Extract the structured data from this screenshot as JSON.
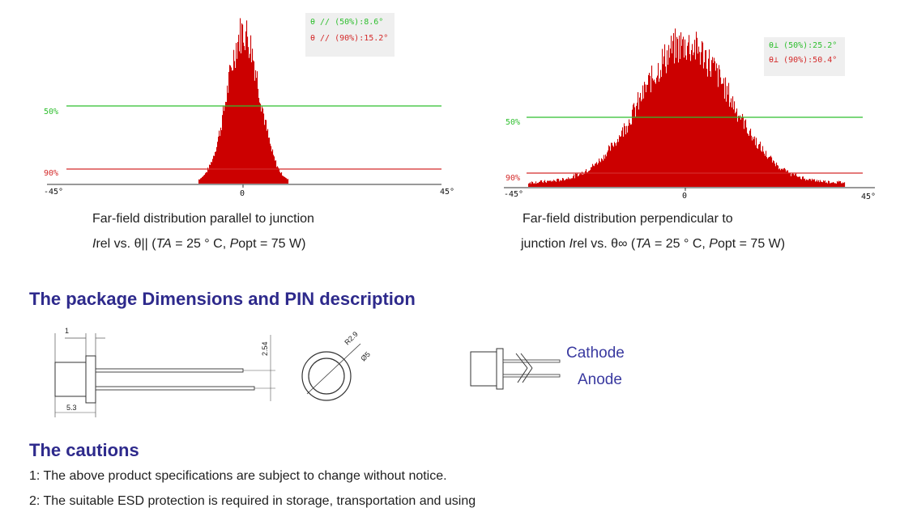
{
  "chart_data": [
    {
      "type": "histogram",
      "xlabel_ticks": [
        "-45°",
        "0",
        "45°"
      ],
      "xlim": [
        -45,
        45
      ],
      "reference_lines": [
        {
          "label": "50%",
          "level": 0.5,
          "color": "#2fbf2f"
        },
        {
          "label": "90%",
          "level": 0.1,
          "color": "#d42a2a"
        }
      ],
      "legend": [
        "θ // (50%):8.6°",
        "θ // (90%):15.2°"
      ],
      "fwhm_deg": 8.6,
      "width_90_deg": 15.2,
      "color": "#cc0000",
      "legend_colors": [
        "#2fbf2f",
        "#d42a2a"
      ]
    },
    {
      "type": "histogram",
      "xlabel_ticks": [
        "-45°",
        "0",
        "45°"
      ],
      "xlim": [
        -45,
        45
      ],
      "reference_lines": [
        {
          "label": "50%",
          "level": 0.5,
          "color": "#2fbf2f"
        },
        {
          "label": "90%",
          "level": 0.1,
          "color": "#d42a2a"
        }
      ],
      "legend": [
        "θ⊥ (50%):25.2°",
        "θ⊥ (90%):50.4°"
      ],
      "fwhm_deg": 25.2,
      "width_90_deg": 50.4,
      "color": "#cc0000",
      "legend_colors": [
        "#2fbf2f",
        "#d42a2a"
      ]
    }
  ],
  "captions": {
    "left_line1": "Far-field distribution parallel to junction",
    "left_line2_prefix": "I",
    "left_line2_rest": "rel vs. θ|| (",
    "left_line2_ta": "TA",
    "left_line2_mid": " = 25 ° C, ",
    "left_line2_p": "P",
    "left_line2_end": "opt = 75 W)",
    "right_line1": "Far-field distribution perpendicular to",
    "right_line2_a": "junction ",
    "right_line2_i": "I",
    "right_line2_b": "rel vs. θ∞ (",
    "right_line2_ta": "TA",
    "right_line2_mid": " = 25 ° C, ",
    "right_line2_p": "P",
    "right_line2_end": "opt = 75 W)"
  },
  "package": {
    "title": "The package Dimensions and PIN description",
    "dims": {
      "lead_offset": "1",
      "pitch": "2.54",
      "body_length": "5.3",
      "radius": "R2.9",
      "diameter": "Ø5"
    },
    "pins": {
      "cathode": "Cathode",
      "anode": "Anode"
    }
  },
  "cautions": {
    "title": "The cautions",
    "items": [
      "1: The above product specifications are subject to change without notice.",
      "2: The suitable ESD protection is required in storage, transportation and using"
    ]
  }
}
